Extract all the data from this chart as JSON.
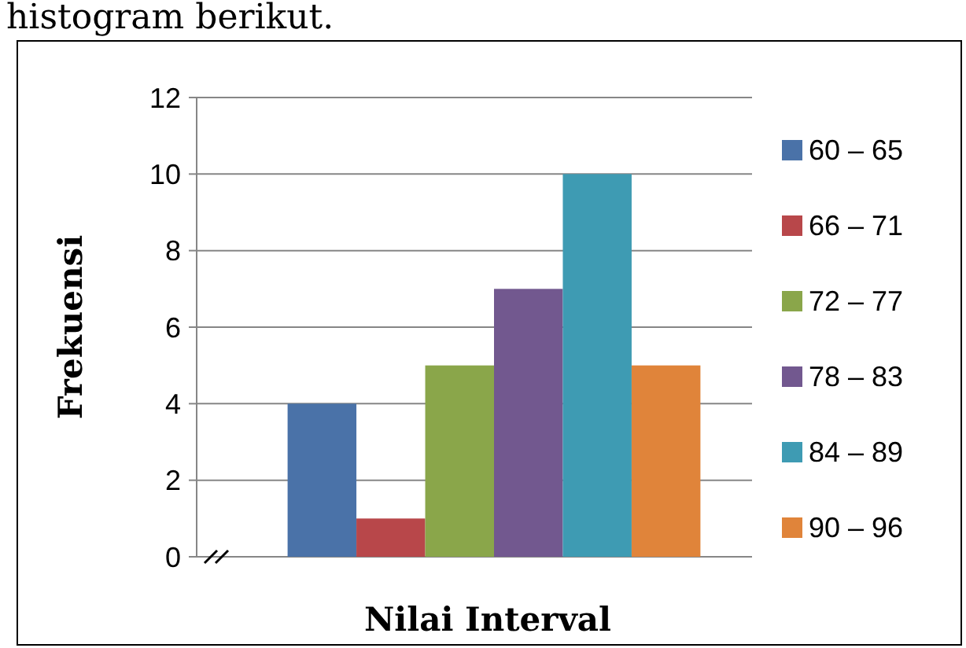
{
  "chart_data": {
    "type": "bar",
    "categories": [
      null
    ],
    "series": [
      {
        "name": "60 – 65",
        "color": "#4a72a8",
        "values": [
          4
        ]
      },
      {
        "name": "66 – 71",
        "color": "#b8474a",
        "values": [
          1
        ]
      },
      {
        "name": "72 – 77",
        "color": "#8aa64a",
        "values": [
          5
        ]
      },
      {
        "name": "78 – 83",
        "color": "#72588f",
        "values": [
          7
        ]
      },
      {
        "name": "84 – 89",
        "color": "#3e9bb3",
        "values": [
          10
        ]
      },
      {
        "name": "90 – 96",
        "color": "#e0843a",
        "values": [
          5
        ]
      }
    ],
    "xlabel": "Nilai Interval",
    "ylabel": "Frekuensi",
    "annotations": [
      "histogram berikut."
    ],
    "ylim": [
      0,
      12
    ],
    "yticks": [
      0,
      2,
      4,
      6,
      8,
      10,
      12
    ],
    "grid": "y",
    "legend": "right"
  }
}
